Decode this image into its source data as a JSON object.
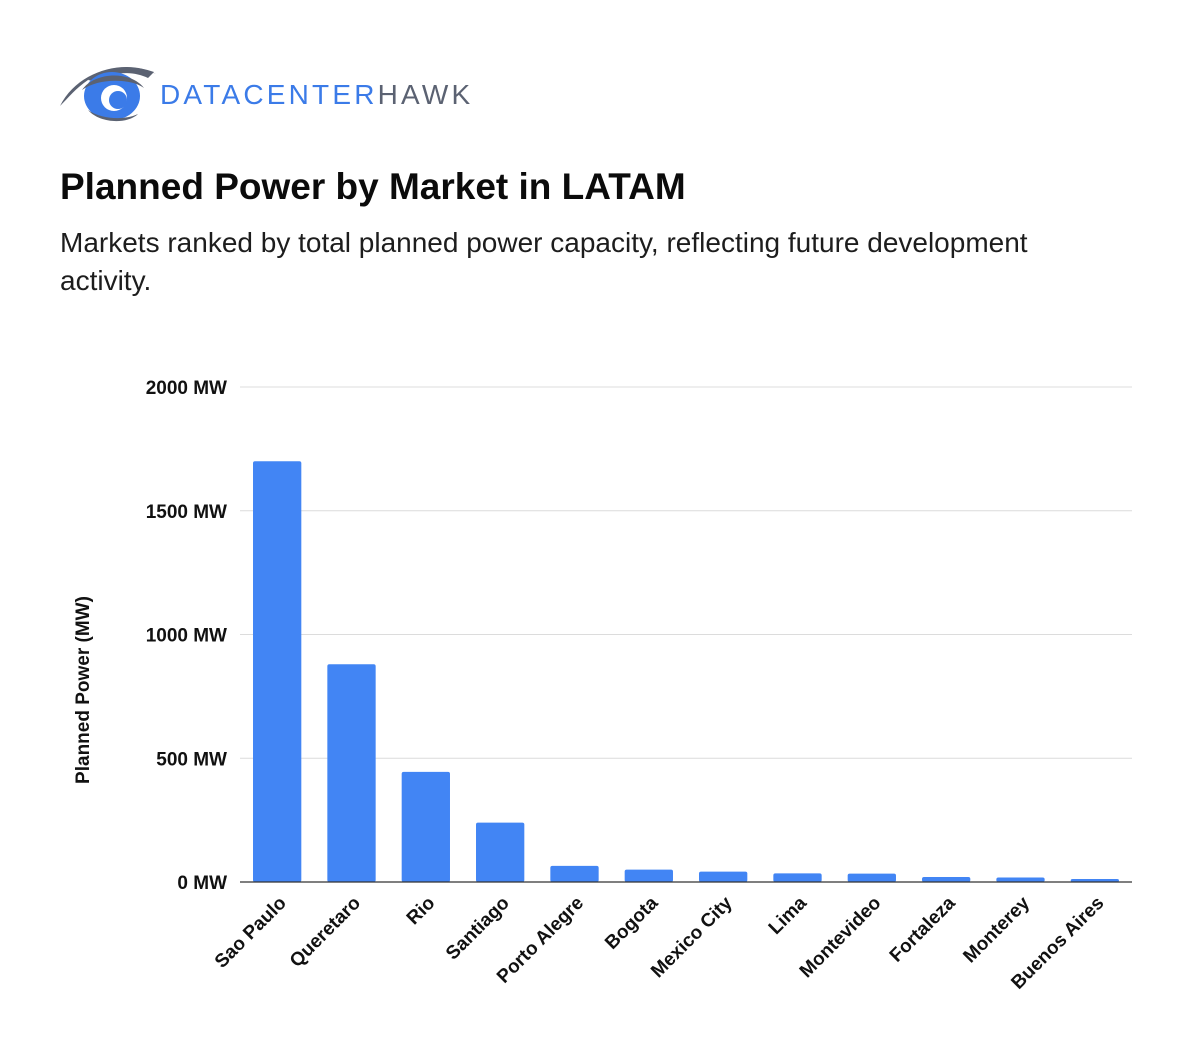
{
  "brand": {
    "name_part1": "DATACENTER",
    "name_part2": "HAWK",
    "logo_icon": "hawk-eye-icon",
    "colors": {
      "primary": "#3b7be8",
      "secondary": "#5b6272"
    }
  },
  "header": {
    "title": "Planned Power by Market in LATAM",
    "subtitle": "Markets ranked by total planned power capacity, reflecting future development activity."
  },
  "chart_data": {
    "type": "bar",
    "ylabel": "Planned Power (MW)",
    "xlabel": "",
    "ylim": [
      0,
      2000
    ],
    "yticks": [
      0,
      500,
      1000,
      1500,
      2000
    ],
    "ytick_labels": [
      "0 MW",
      "500 MW",
      "1000 MW",
      "1500 MW",
      "2000 MW"
    ],
    "grid": true,
    "bar_color": "#4285f4",
    "categories": [
      "Sao Paulo",
      "Queretaro",
      "Rio",
      "Santiago",
      "Porto Alegre",
      "Bogota",
      "Mexico City",
      "Lima",
      "Montevideo",
      "Fortaleza",
      "Monterey",
      "Buenos Aires"
    ],
    "values": [
      1700,
      880,
      445,
      240,
      65,
      50,
      42,
      35,
      34,
      20,
      18,
      12
    ]
  }
}
